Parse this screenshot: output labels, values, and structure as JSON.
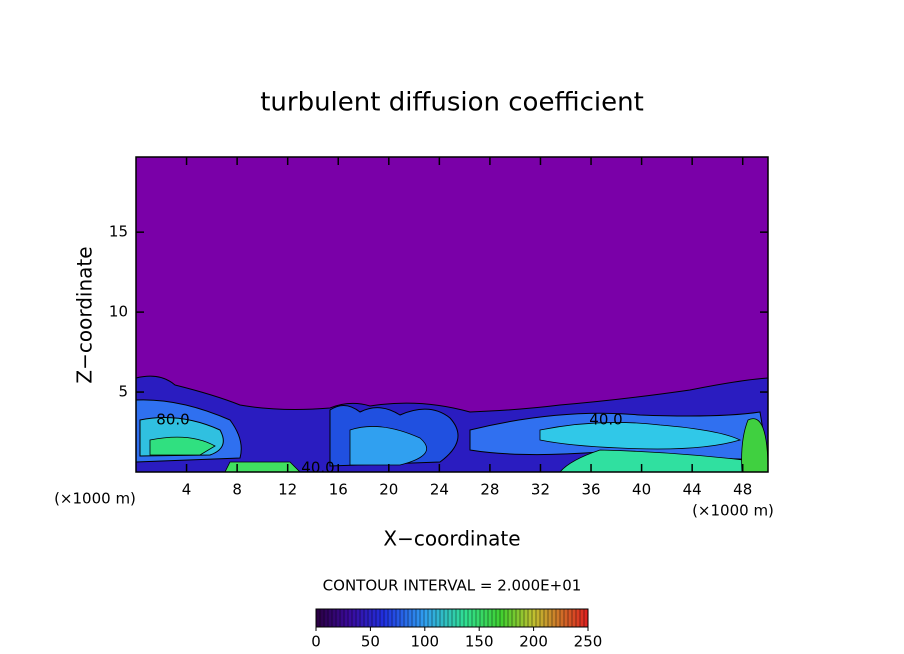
{
  "chart_data": {
    "type": "contour",
    "title": "turbulent diffusion coefficient",
    "xlabel": "X−coordinate",
    "ylabel": "Z−coordinate",
    "x_unit": "(×1000 m)",
    "x_unit_right": "(×1000 m)",
    "xlim": [
      0,
      50
    ],
    "ylim": [
      0,
      19.7
    ],
    "xticks": [
      4,
      8,
      12,
      16,
      20,
      24,
      28,
      32,
      36,
      40,
      44,
      48
    ],
    "yticks": [
      5,
      10,
      15
    ],
    "contour_labels": [
      "80.0",
      "40.0",
      "40.0"
    ],
    "colorbar": {
      "label": "CONTOUR INTERVAL = 2.000E+01",
      "lim": [
        0,
        250
      ],
      "ticks": [
        0,
        50,
        100,
        150,
        200,
        250
      ]
    }
  }
}
